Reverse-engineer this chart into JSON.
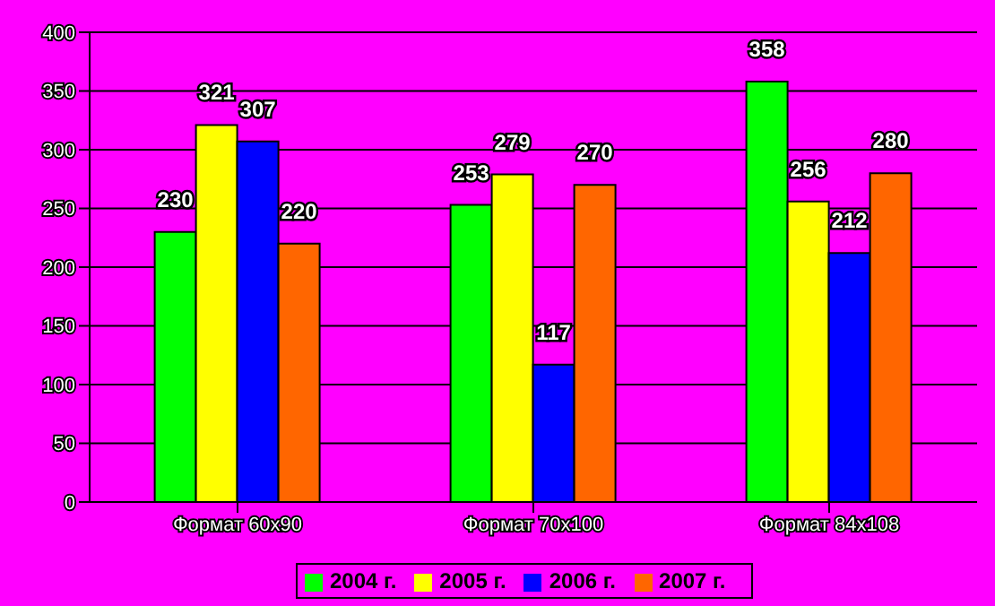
{
  "chart_data": {
    "type": "bar",
    "categories": [
      "Формат 60х90",
      "Формат 70х100",
      "Формат 84х108"
    ],
    "series": [
      {
        "name": "2004 г.",
        "color": "#00ff00",
        "values": [
          230,
          253,
          358
        ]
      },
      {
        "name": "2005 г.",
        "color": "#ffff00",
        "values": [
          321,
          279,
          256
        ]
      },
      {
        "name": "2006 г.",
        "color": "#0000ff",
        "values": [
          307,
          117,
          212
        ]
      },
      {
        "name": "2007 г.",
        "color": "#ff6600",
        "values": [
          220,
          270,
          280
        ]
      }
    ],
    "ylim": [
      0,
      400
    ],
    "yticks": [
      0,
      50,
      100,
      150,
      200,
      250,
      300,
      350,
      400
    ],
    "grid": "y",
    "legend": "bottom",
    "data_labels": true
  }
}
